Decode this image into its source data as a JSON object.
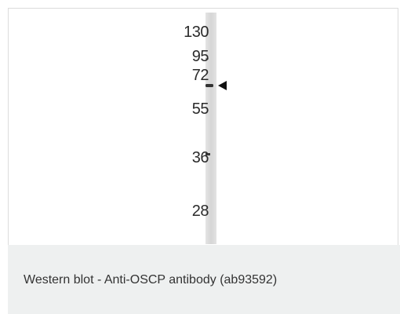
{
  "blot": {
    "markers": [
      "130",
      "95",
      "72",
      "55",
      "36",
      "28"
    ]
  },
  "caption": {
    "text": "Western blot - Anti-OSCP antibody (ab93592)"
  }
}
